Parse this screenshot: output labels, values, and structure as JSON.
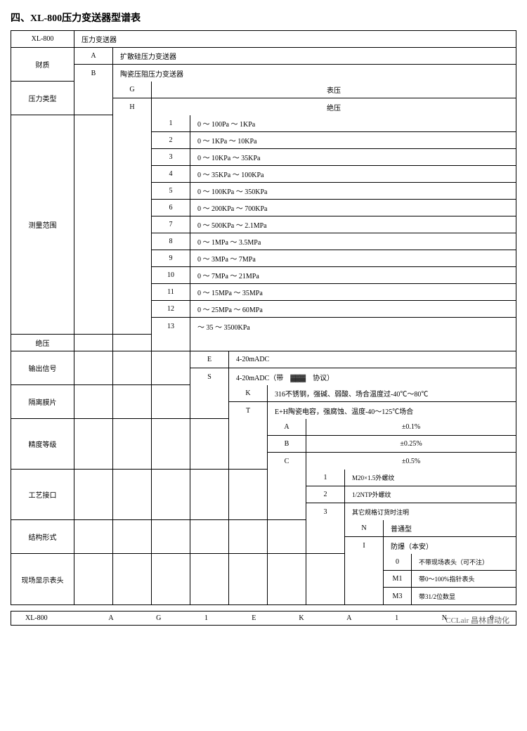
{
  "title": "四、XL-800压力变送器型谱表",
  "header": {
    "code": "XL-800",
    "name": "压力变送器"
  },
  "material": {
    "label": "财质",
    "rows": [
      {
        "code": "A",
        "desc": "扩散硅压力变送器"
      },
      {
        "code": "B",
        "desc": "陶瓷压阻压力变送器"
      }
    ]
  },
  "ptype": {
    "label": "压力类型",
    "rows": [
      {
        "code": "G",
        "desc": "表压"
      },
      {
        "code": "H",
        "desc": "绝压"
      }
    ]
  },
  "range": {
    "label": "测量范围",
    "rows": [
      {
        "code": "1",
        "desc": "0 ～ 100Pa ～ 1KPa"
      },
      {
        "code": "2",
        "desc": "0 ～ 1KPa ～ 10KPa"
      },
      {
        "code": "3",
        "desc": "0 ～ 10KPa ～ 35KPa"
      },
      {
        "code": "4",
        "desc": "0 ～ 35KPa ～ 100KPa"
      },
      {
        "code": "5",
        "desc": "0 ～ 100KPa ～ 350KPa"
      },
      {
        "code": "6",
        "desc": "0 ～ 200KPa ～ 700KPa"
      },
      {
        "code": "7",
        "desc": "0 ～ 500KPa ～ 2.1MPa"
      },
      {
        "code": "8",
        "desc": "0 ～ 1MPa ～ 3.5MPa"
      },
      {
        "code": "9",
        "desc": "0 ～ 3MPa ～ 7MPa"
      },
      {
        "code": "10",
        "desc": "0 ～ 7MPa ～ 21MPa"
      },
      {
        "code": "11",
        "desc": "0 ～ 15MPa ～ 35MPa"
      },
      {
        "code": "12",
        "desc": "0 ～ 25MPa ～ 60MPa"
      },
      {
        "code": "13",
        "desc": "～ 35 ～ 3500KPa"
      }
    ]
  },
  "abs_label": "绝压",
  "output": {
    "label": "输出信号",
    "rows": [
      {
        "code": "E",
        "desc": "4-20mADC"
      },
      {
        "code": "S",
        "desc": "4-20mADC（带　▓▓▓　协议）"
      }
    ]
  },
  "membrane": {
    "label": "隔离膜片",
    "rows": [
      {
        "code": "K",
        "desc": "316不锈钢，强碱、弱酸、场合温度过-40℃～80℃"
      },
      {
        "code": "T",
        "desc": "E+H陶瓷电容，强腐蚀、温度-40～125℃场合"
      }
    ]
  },
  "accuracy": {
    "label": "精度等级",
    "rows": [
      {
        "code": "A",
        "desc": "±0.1%"
      },
      {
        "code": "B",
        "desc": "±0.25%"
      },
      {
        "code": "C",
        "desc": "±0.5%"
      }
    ]
  },
  "process": {
    "label": "工艺接口",
    "rows": [
      {
        "code": "1",
        "desc": "M20×1.5外螺纹"
      },
      {
        "code": "2",
        "desc": "1/2NTP外螺纹"
      },
      {
        "code": "3",
        "desc": "其它规格订货时注明"
      }
    ]
  },
  "structure": {
    "label": "结构形式",
    "rows": [
      {
        "code": "N",
        "desc": "普通型"
      },
      {
        "code": "I",
        "desc": "防爆（本安）"
      }
    ]
  },
  "display": {
    "label": "现场显示表头",
    "rows": [
      {
        "code": "0",
        "desc": "不带现场表头（可不注）"
      },
      {
        "code": "M1",
        "desc": "带0～100%指针表头"
      },
      {
        "code": "M3",
        "desc": "带31/2位数显"
      }
    ]
  },
  "footer": [
    "XL-800",
    "A",
    "G",
    "1",
    "E",
    "K",
    "A",
    "1",
    "N",
    "0"
  ],
  "watermark": "CCLair 昌林自动化"
}
